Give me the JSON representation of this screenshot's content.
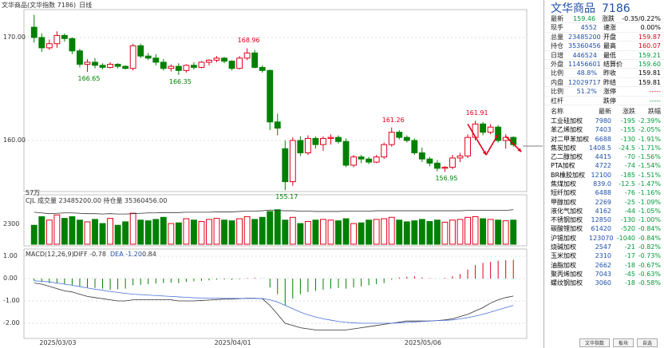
{
  "window": {
    "title": "文华商品(文华指数 7186)",
    "period": "日线"
  },
  "price_axis": [
    "170.00",
    "160.00"
  ],
  "price_annotations": [
    {
      "text": "168.96"
    },
    {
      "text": "166.65"
    },
    {
      "text": "166.35"
    },
    {
      "text": "155.17"
    },
    {
      "text": "161.26"
    },
    {
      "text": "156.95"
    },
    {
      "text": "161.91"
    }
  ],
  "volume_panel": {
    "scale": "57万",
    "legend": "CJL  成交量 23485200.00  持仓量 35360456.00",
    "axis": [
      "2300"
    ]
  },
  "macd_panel": {
    "legend_name": "MACD(12,26,9)",
    "diff_label": "DIFF -0.78",
    "dea_label": "DEA -1.20",
    "macd_label": "0.84",
    "axis": [
      "1.00",
      "0.00",
      "-1.00",
      "-2.00"
    ]
  },
  "date_axis": [
    "2025/03/03",
    "2025/04/01",
    "2025/05/06"
  ],
  "chart_data": {
    "type": "candlestick",
    "candles": [
      [
        171.0,
        172.2,
        169.5,
        170.0
      ],
      [
        170.0,
        170.4,
        168.6,
        169.0
      ],
      [
        169.0,
        169.8,
        168.8,
        169.4
      ],
      [
        169.4,
        170.6,
        169.0,
        170.2
      ],
      [
        170.2,
        170.4,
        169.6,
        169.9
      ],
      [
        169.9,
        170.0,
        168.4,
        168.7
      ],
      [
        168.7,
        168.9,
        167.1,
        167.4
      ],
      [
        167.4,
        167.9,
        166.65,
        167.6
      ],
      [
        167.6,
        168.0,
        167.0,
        167.3
      ],
      [
        167.3,
        167.5,
        166.9,
        167.1
      ],
      [
        167.1,
        167.6,
        167.0,
        167.4
      ],
      [
        167.4,
        167.5,
        167.0,
        167.2
      ],
      [
        167.2,
        167.3,
        166.9,
        167.0
      ],
      [
        167.0,
        169.4,
        166.8,
        169.2
      ],
      [
        169.2,
        169.4,
        168.0,
        168.2
      ],
      [
        168.2,
        168.5,
        167.8,
        168.0
      ],
      [
        168.0,
        168.4,
        167.3,
        167.6
      ],
      [
        167.6,
        167.9,
        166.8,
        167.0
      ],
      [
        167.0,
        167.4,
        166.7,
        167.2
      ],
      [
        167.2,
        167.5,
        166.35,
        166.8
      ],
      [
        166.8,
        167.4,
        166.6,
        167.3
      ],
      [
        167.3,
        167.6,
        166.9,
        167.1
      ],
      [
        167.1,
        167.7,
        167.0,
        167.6
      ],
      [
        167.6,
        167.9,
        167.3,
        167.8
      ],
      [
        167.8,
        168.2,
        167.6,
        168.0
      ],
      [
        168.0,
        168.1,
        167.5,
        167.7
      ],
      [
        167.7,
        167.8,
        166.8,
        167.0
      ],
      [
        167.0,
        168.2,
        166.9,
        168.0
      ],
      [
        168.0,
        168.96,
        167.8,
        168.5
      ],
      [
        168.5,
        168.8,
        167.0,
        167.1
      ],
      [
        167.1,
        167.3,
        166.6,
        166.8
      ],
      [
        166.8,
        166.9,
        161.0,
        161.8
      ],
      [
        161.8,
        162.6,
        160.5,
        161.2
      ],
      [
        159.2,
        160.0,
        155.17,
        156.0
      ],
      [
        156.0,
        160.3,
        155.6,
        160.0
      ],
      [
        160.0,
        160.4,
        158.5,
        158.8
      ],
      [
        158.8,
        160.5,
        158.6,
        160.2
      ],
      [
        160.2,
        160.4,
        159.2,
        159.6
      ],
      [
        159.6,
        160.4,
        159.0,
        160.2
      ],
      [
        160.2,
        160.6,
        159.6,
        160.3
      ],
      [
        160.3,
        160.5,
        159.7,
        159.9
      ],
      [
        159.9,
        160.2,
        157.4,
        157.6
      ],
      [
        157.6,
        158.6,
        157.4,
        158.4
      ],
      [
        158.4,
        158.6,
        157.8,
        158.2
      ],
      [
        158.2,
        158.4,
        157.7,
        157.9
      ],
      [
        157.9,
        158.6,
        157.8,
        158.4
      ],
      [
        158.4,
        159.8,
        158.2,
        159.6
      ],
      [
        159.6,
        161.26,
        159.4,
        160.8
      ],
      [
        160.8,
        161.0,
        160.1,
        160.3
      ],
      [
        160.3,
        160.5,
        159.8,
        160.0
      ],
      [
        160.0,
        160.2,
        158.6,
        158.8
      ],
      [
        158.8,
        159.3,
        157.9,
        158.2
      ],
      [
        158.2,
        158.4,
        157.5,
        157.8
      ],
      [
        157.8,
        158.1,
        157.0,
        157.3
      ],
      [
        157.3,
        157.5,
        156.95,
        157.4
      ],
      [
        157.4,
        158.6,
        157.2,
        158.3
      ],
      [
        158.3,
        158.8,
        157.9,
        158.5
      ],
      [
        158.5,
        160.6,
        158.3,
        160.3
      ],
      [
        160.3,
        161.91,
        160.0,
        161.6
      ],
      [
        161.6,
        161.8,
        160.5,
        160.8
      ],
      [
        160.8,
        161.6,
        160.6,
        161.3
      ],
      [
        161.3,
        161.5,
        159.8,
        160.0
      ],
      [
        160.0,
        160.6,
        159.2,
        160.3
      ],
      [
        160.3,
        160.4,
        159.4,
        159.6
      ]
    ],
    "volume_bars": [
      0.55,
      0.8,
      0.7,
      0.85,
      0.75,
      0.8,
      0.7,
      0.65,
      0.72,
      0.6,
      0.75,
      0.55,
      0.65,
      0.9,
      0.7,
      0.68,
      0.72,
      0.78,
      0.6,
      0.62,
      0.74,
      0.7,
      0.66,
      0.72,
      0.75,
      0.7,
      0.68,
      0.74,
      0.8,
      0.72,
      0.78,
      0.95,
      1.0,
      0.7,
      0.78,
      0.6,
      0.66,
      0.7,
      0.72,
      0.7,
      0.68,
      0.74,
      0.6,
      0.62,
      0.7,
      0.72,
      0.74,
      0.78,
      0.7,
      0.65,
      0.68,
      0.72,
      0.66,
      0.7,
      0.64,
      0.7,
      0.72,
      0.78,
      0.8,
      0.74,
      0.72,
      0.7,
      0.68,
      0.7
    ],
    "volume_line": [
      0.88,
      0.86,
      0.84,
      0.85,
      0.86,
      0.86,
      0.85,
      0.84,
      0.84,
      0.83,
      0.84,
      0.83,
      0.83,
      0.84,
      0.85,
      0.86,
      0.86,
      0.87,
      0.87,
      0.87,
      0.88,
      0.88,
      0.88,
      0.88,
      0.89,
      0.89,
      0.89,
      0.9,
      0.91,
      0.91,
      0.92,
      0.94,
      0.93,
      0.92,
      0.92,
      0.91,
      0.91,
      0.9,
      0.9,
      0.9,
      0.9,
      0.91,
      0.91,
      0.91,
      0.91,
      0.92,
      0.92,
      0.92,
      0.92,
      0.92,
      0.92,
      0.92,
      0.92,
      0.92,
      0.92,
      0.92,
      0.92,
      0.93,
      0.93,
      0.93,
      0.93,
      0.93,
      0.93,
      0.95
    ],
    "macd_hist": [
      -0.1,
      -0.15,
      -0.2,
      -0.22,
      -0.25,
      -0.3,
      -0.35,
      -0.4,
      -0.42,
      -0.45,
      -0.5,
      -0.48,
      -0.45,
      -0.3,
      -0.28,
      -0.25,
      -0.22,
      -0.2,
      -0.18,
      -0.2,
      -0.15,
      -0.12,
      -0.1,
      -0.08,
      -0.05,
      -0.04,
      -0.06,
      -0.03,
      0.02,
      0.04,
      0.01,
      -0.4,
      -0.7,
      -1.2,
      -0.9,
      -0.7,
      -0.6,
      -0.55,
      -0.5,
      -0.45,
      -0.42,
      -0.45,
      -0.4,
      -0.35,
      -0.3,
      -0.25,
      -0.2,
      -0.05,
      0.05,
      0.08,
      0.1,
      0.05,
      0.02,
      0.0,
      0.03,
      0.1,
      0.2,
      0.4,
      0.6,
      0.7,
      0.75,
      0.8,
      0.82,
      0.84
    ],
    "diff_line": [
      -0.2,
      -0.25,
      -0.35,
      -0.45,
      -0.55,
      -0.6,
      -0.7,
      -0.8,
      -0.85,
      -0.9,
      -0.95,
      -1.0,
      -1.0,
      -0.95,
      -0.95,
      -0.95,
      -0.95,
      -0.95,
      -0.95,
      -1.0,
      -1.0,
      -1.0,
      -0.98,
      -0.96,
      -0.94,
      -0.92,
      -0.92,
      -0.9,
      -0.88,
      -0.88,
      -0.9,
      -1.2,
      -1.6,
      -2.0,
      -2.1,
      -2.2,
      -2.25,
      -2.3,
      -2.3,
      -2.3,
      -2.3,
      -2.3,
      -2.25,
      -2.2,
      -2.15,
      -2.1,
      -2.05,
      -2.0,
      -1.95,
      -1.9,
      -1.9,
      -1.9,
      -1.9,
      -1.88,
      -1.85,
      -1.8,
      -1.7,
      -1.6,
      -1.45,
      -1.3,
      -1.1,
      -0.95,
      -0.85,
      -0.78
    ],
    "dea_line": [
      -0.1,
      -0.12,
      -0.15,
      -0.2,
      -0.25,
      -0.3,
      -0.36,
      -0.42,
      -0.48,
      -0.52,
      -0.58,
      -0.62,
      -0.66,
      -0.7,
      -0.72,
      -0.74,
      -0.76,
      -0.78,
      -0.8,
      -0.82,
      -0.84,
      -0.86,
      -0.87,
      -0.88,
      -0.88,
      -0.89,
      -0.89,
      -0.89,
      -0.89,
      -0.89,
      -0.89,
      -0.95,
      -1.05,
      -1.2,
      -1.35,
      -1.5,
      -1.62,
      -1.72,
      -1.8,
      -1.86,
      -1.92,
      -1.96,
      -1.98,
      -2.0,
      -2.0,
      -2.0,
      -2.0,
      -2.0,
      -1.98,
      -1.96,
      -1.94,
      -1.92,
      -1.9,
      -1.88,
      -1.87,
      -1.85,
      -1.8,
      -1.75,
      -1.68,
      -1.6,
      -1.5,
      -1.4,
      -1.3,
      -1.2
    ]
  },
  "quote": {
    "name": "文华商品",
    "code": "7186",
    "rows": [
      {
        "l1": "最新",
        "v1": "159.46",
        "c1": "green",
        "l2": "涨跌",
        "v2": "-0.35/0.22%",
        "c2": "blk"
      },
      {
        "l1": "现手",
        "v1": "4552",
        "c1": "blue",
        "l2": "速涨",
        "v2": "0.00%",
        "c2": "blk"
      },
      {
        "l1": "总量",
        "v1": "23485200",
        "c1": "blue",
        "l2": "开盘",
        "v2": "159.87",
        "c2": "red"
      },
      {
        "l1": "持仓",
        "v1": "35360456",
        "c1": "blue",
        "l2": "最高",
        "v2": "160.07",
        "c2": "red"
      },
      {
        "l1": "日增",
        "v1": "446524",
        "c1": "blue",
        "l2": "最低",
        "v2": "159.21",
        "c2": "green"
      },
      {
        "l1": "外盘",
        "v1": "11456601",
        "c1": "blue",
        "l2": "结算价",
        "v2": "159.60",
        "c2": "green"
      },
      {
        "l1": "比例",
        "v1": "48.8%",
        "c1": "blue",
        "l2": "昨收",
        "v2": "159.81",
        "c2": "blk"
      },
      {
        "l1": "内盘",
        "v1": "12029717",
        "c1": "blue",
        "l2": "昨结",
        "v2": "159.81",
        "c2": "blk"
      },
      {
        "l1": "比例",
        "v1": "51.2%",
        "c1": "blue",
        "l2": "涨停",
        "v2": "-----",
        "c2": "red"
      },
      {
        "l1": "杠杆",
        "v1": "",
        "c1": "blk",
        "l2": "跌停",
        "v2": "-----",
        "c2": "green"
      }
    ]
  },
  "list": {
    "headers": {
      "name": "名称",
      "price": "最新",
      "change": "涨跌",
      "pct": "跌幅"
    },
    "rows": [
      {
        "name": "工业硅加权",
        "price": "7980",
        "change": "-195",
        "pct": "-2.39%"
      },
      {
        "name": "苯乙烯加权",
        "price": "7403",
        "change": "-155",
        "pct": "-2.05%"
      },
      {
        "name": "对二甲苯加权",
        "price": "6688",
        "change": "-130",
        "pct": "-1.91%"
      },
      {
        "name": "焦炭加权",
        "price": "1408.5",
        "change": "-24.5",
        "pct": "-1.71%"
      },
      {
        "name": "乙二醇加权",
        "price": "4415",
        "change": "-70",
        "pct": "-1.56%"
      },
      {
        "name": "PTA加权",
        "price": "4722",
        "change": "-74",
        "pct": "-1.54%"
      },
      {
        "name": "BR橡胶加权",
        "price": "12100",
        "change": "-185",
        "pct": "-1.51%"
      },
      {
        "name": "焦煤加权",
        "price": "839.0",
        "change": "-12.5",
        "pct": "-1.47%"
      },
      {
        "name": "短纤加权",
        "price": "6488",
        "change": "-76",
        "pct": "-1.16%"
      },
      {
        "name": "甲醇加权",
        "price": "2269",
        "change": "-25",
        "pct": "-1.09%"
      },
      {
        "name": "液化气加权",
        "price": "4162",
        "change": "-44",
        "pct": "-1.05%"
      },
      {
        "name": "不锈钢加权",
        "price": "12850",
        "change": "-130",
        "pct": "-1.00%"
      },
      {
        "name": "碳酸锂加权",
        "price": "61420",
        "change": "-520",
        "pct": "-0.84%"
      },
      {
        "name": "沪锡加权",
        "price": "123070",
        "change": "-1040",
        "pct": "-0.84%"
      },
      {
        "name": "烧碱加权",
        "price": "2547",
        "change": "-21",
        "pct": "-0.82%"
      },
      {
        "name": "玉米加权",
        "price": "2310",
        "change": "-17",
        "pct": "-0.73%"
      },
      {
        "name": "油脂加权",
        "price": "2662",
        "change": "-18",
        "pct": "-0.67%"
      },
      {
        "name": "聚丙烯加权",
        "price": "7043",
        "change": "-45",
        "pct": "-0.63%"
      },
      {
        "name": "螺纹钢加权",
        "price": "3060",
        "change": "-18",
        "pct": "-0.58%"
      }
    ]
  },
  "tabs": [
    "文华指数",
    "板块",
    "自选"
  ],
  "colors": {
    "up": "#e0001b",
    "down": "#008000",
    "diff": "#333333",
    "dea": "#4a6fd8",
    "arrow": "#e0001b"
  }
}
